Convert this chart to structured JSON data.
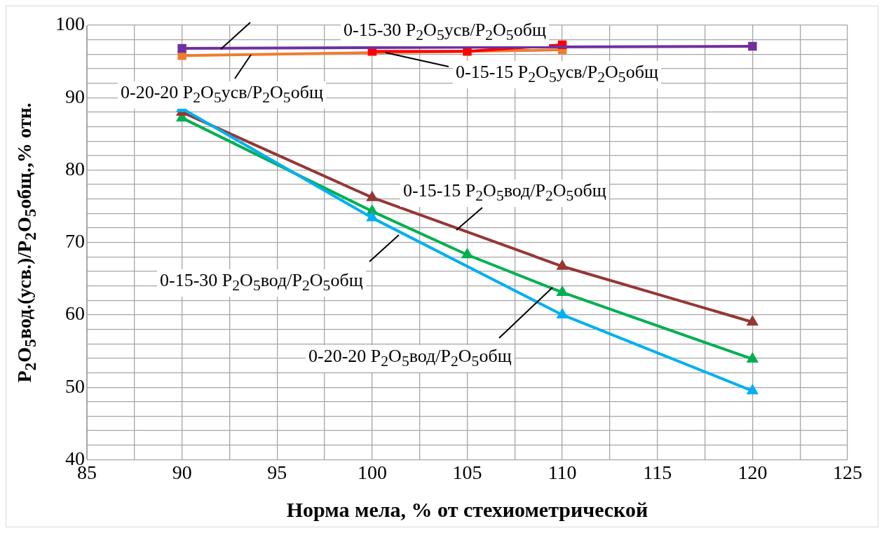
{
  "chart_data": {
    "type": "line",
    "xlabel": "Норма мела, % от стехиометрической",
    "ylabel": "P$_{2}$O$_{5}$вод.(усв.)/P$_{2}$O$_{5}$общ.,% отн.",
    "xlim": [
      85,
      125
    ],
    "xticks": [
      85,
      {
        "value": 87.5,
        "label": null
      },
      90,
      {
        "value": 92.5,
        "label": null
      },
      95,
      {
        "value": 97.5,
        "label": null
      },
      100,
      {
        "value": 102.5,
        "label": null
      },
      105,
      {
        "value": 107.5,
        "label": null
      },
      110,
      {
        "value": 112.5,
        "label": null
      },
      115,
      {
        "value": 117.5,
        "label": null
      },
      120,
      {
        "value": 122.5,
        "label": null
      },
      125
    ],
    "ylim": [
      40,
      100
    ],
    "yticks": [
      40,
      {
        "value": 42,
        "label": null
      },
      {
        "value": 44,
        "label": null
      },
      {
        "value": 46,
        "label": null
      },
      {
        "value": 48,
        "label": null
      },
      50,
      {
        "value": 52,
        "label": null
      },
      {
        "value": 54,
        "label": null
      },
      {
        "value": 56,
        "label": null
      },
      {
        "value": 58,
        "label": null
      },
      60,
      {
        "value": 62,
        "label": null
      },
      {
        "value": 64,
        "label": null
      },
      {
        "value": 66,
        "label": null
      },
      {
        "value": 68,
        "label": null
      },
      70,
      {
        "value": 72,
        "label": null
      },
      {
        "value": 74,
        "label": null
      },
      {
        "value": 76,
        "label": null
      },
      {
        "value": 78,
        "label": null
      },
      80,
      {
        "value": 82,
        "label": null
      },
      {
        "value": 84,
        "label": null
      },
      {
        "value": 86,
        "label": null
      },
      {
        "value": 88,
        "label": null
      },
      90,
      {
        "value": 92,
        "label": null
      },
      {
        "value": 94,
        "label": null
      },
      {
        "value": 96,
        "label": null
      },
      {
        "value": 98,
        "label": null
      },
      100
    ],
    "grid": true,
    "legend": false,
    "series": [
      {
        "color": "#7030a0",
        "marker": "square",
        "x": [
          90,
          120
        ],
        "values": [
          96.8,
          97.1
        ]
      },
      {
        "color": "#00b0f0",
        "marker": "triangle",
        "x": [
          90,
          100,
          110,
          120
        ],
        "values": [
          88.5,
          73.4,
          60.0,
          49.5
        ]
      },
      {
        "color": "#953735",
        "marker": "triangle",
        "x": [
          90,
          100,
          110,
          120
        ],
        "values": [
          88.0,
          76.2,
          66.7,
          59.0
        ]
      },
      {
        "color": "#00b050",
        "marker": "triangle",
        "x": [
          90,
          100,
          105,
          110,
          120
        ],
        "values": [
          87.2,
          74.3,
          68.3,
          63.1,
          53.9
        ]
      },
      {
        "color": "#ff0000",
        "marker": "square",
        "x": [
          100,
          105,
          110
        ],
        "values": [
          96.4,
          96.4,
          97.3
        ]
      },
      {
        "color": "#ed7d31",
        "marker": "square",
        "x": [
          90,
          110
        ],
        "values": [
          95.8,
          96.6
        ]
      }
    ],
    "annotations": [
      "0-15-30 P$_{2}$O$_{5}$усв/P$_{2}$O$_{5}$общ",
      "0-15-15 P$_{2}$O$_{5}$усв/P$_{2}$O$_{5}$общ",
      "0-20-20 P$_{2}$O$_{5}$усв/P$_{2}$O$_{5}$общ",
      "0-15-15 P$_{2}$O$_{5}$вод/P$_{2}$O$_{5}$общ",
      "0-15-30 P$_{2}$O$_{5}$вод/P$_{2}$O$_{5}$общ",
      "0-20-20 P$_{2}$O$_{5}$вод/P$_{2}$O$_{5}$общ"
    ]
  }
}
